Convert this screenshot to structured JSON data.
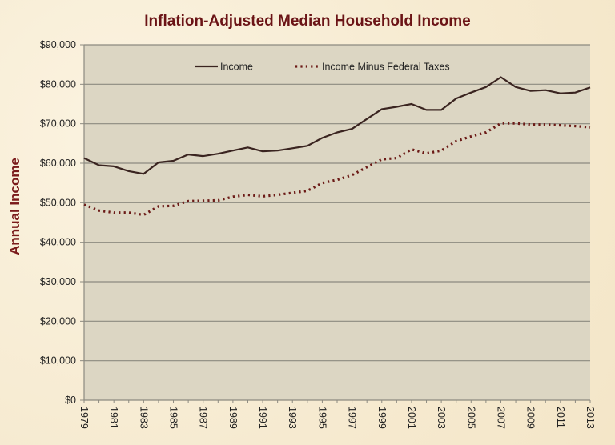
{
  "chart_data": {
    "type": "line",
    "title": "Inflation-Adjusted Median Household Income",
    "xlabel": "",
    "ylabel": "Annual Income",
    "ylim": [
      0,
      90000
    ],
    "xlim": [
      1979,
      2013
    ],
    "grid": true,
    "legend_position": "top-center",
    "y_ticks": [
      "$0",
      "$10,000",
      "$20,000",
      "$30,000",
      "$40,000",
      "$50,000",
      "$60,000",
      "$70,000",
      "$80,000",
      "$90,000"
    ],
    "y_tick_values": [
      0,
      10000,
      20000,
      30000,
      40000,
      50000,
      60000,
      70000,
      80000,
      90000
    ],
    "x_ticks": [
      "1979",
      "1981",
      "1983",
      "1985",
      "1987",
      "1989",
      "1991",
      "1993",
      "1995",
      "1997",
      "1999",
      "2001",
      "2003",
      "2005",
      "2007",
      "2009",
      "2011",
      "2013"
    ],
    "x": [
      1979,
      1980,
      1981,
      1982,
      1983,
      1984,
      1985,
      1986,
      1987,
      1988,
      1989,
      1990,
      1991,
      1992,
      1993,
      1994,
      1995,
      1996,
      1997,
      1998,
      1999,
      2000,
      2001,
      2002,
      2003,
      2004,
      2005,
      2006,
      2007,
      2008,
      2009,
      2010,
      2011,
      2012,
      2013
    ],
    "series": [
      {
        "name": "Income",
        "style": "solid",
        "color": "#3a2420",
        "values": [
          61300,
          59500,
          59200,
          58000,
          57300,
          60200,
          60600,
          62200,
          61800,
          62400,
          63200,
          64000,
          63000,
          63200,
          63800,
          64400,
          66400,
          67800,
          68700,
          71200,
          73700,
          74300,
          75000,
          73500,
          73500,
          76400,
          77900,
          79300,
          81800,
          79300,
          78300,
          78500,
          77700,
          77900,
          79200
        ]
      },
      {
        "name": "Income Minus Federal Taxes",
        "style": "dotted",
        "color": "#6b1a16",
        "values": [
          49500,
          48000,
          47500,
          47500,
          46900,
          49100,
          49200,
          50400,
          50500,
          50600,
          51500,
          52000,
          51600,
          52000,
          52500,
          53000,
          55000,
          55800,
          57000,
          59000,
          61000,
          61300,
          63500,
          62500,
          63200,
          65600,
          66800,
          67800,
          70100,
          70100,
          69800,
          69800,
          69600,
          69400,
          69100
        ]
      }
    ]
  },
  "colors": {
    "plot_background": "#dcd6c3",
    "gridline": "#8c8a80",
    "title": "#6b1416"
  }
}
